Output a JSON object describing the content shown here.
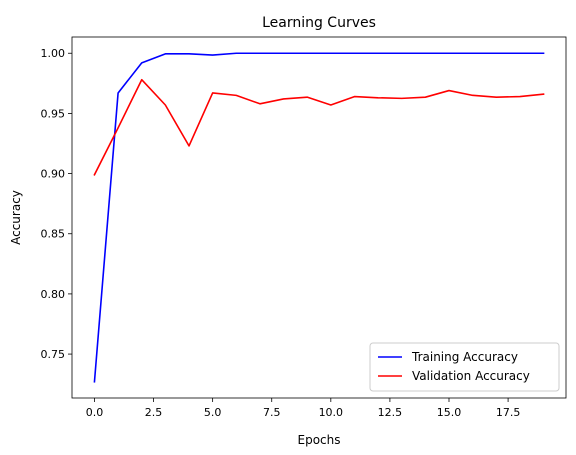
{
  "chart_data": {
    "type": "line",
    "title": "Learning Curves",
    "xlabel": "Epochs",
    "ylabel": "Accuracy",
    "xlim": [
      -0.95,
      19.95
    ],
    "ylim": [
      0.7135,
      1.0135
    ],
    "x": [
      0,
      1,
      2,
      3,
      4,
      5,
      6,
      7,
      8,
      9,
      10,
      11,
      12,
      13,
      14,
      15,
      16,
      17,
      18,
      19
    ],
    "xticks": [
      0.0,
      2.5,
      5.0,
      7.5,
      10.0,
      12.5,
      15.0,
      17.5
    ],
    "xtick_labels": [
      "0.0",
      "2.5",
      "5.0",
      "7.5",
      "10.0",
      "12.5",
      "15.0",
      "17.5"
    ],
    "yticks": [
      0.75,
      0.8,
      0.85,
      0.9,
      0.95,
      1.0
    ],
    "ytick_labels": [
      "0.75",
      "0.80",
      "0.85",
      "0.90",
      "0.95",
      "1.00"
    ],
    "grid": false,
    "legend_position": "lower-right",
    "series": [
      {
        "name": "Training Accuracy",
        "color": "#0000ff",
        "values": [
          0.727,
          0.967,
          0.992,
          0.9995,
          0.9995,
          0.9985,
          1.0,
          1.0,
          1.0,
          1.0,
          1.0,
          1.0,
          1.0,
          1.0,
          1.0,
          1.0,
          1.0,
          1.0,
          1.0,
          1.0
        ]
      },
      {
        "name": "Validation Accuracy",
        "color": "#ff0000",
        "values": [
          0.899,
          0.938,
          0.978,
          0.957,
          0.923,
          0.967,
          0.965,
          0.958,
          0.962,
          0.9635,
          0.957,
          0.964,
          0.963,
          0.9625,
          0.9635,
          0.969,
          0.965,
          0.9635,
          0.964,
          0.966
        ]
      }
    ]
  }
}
